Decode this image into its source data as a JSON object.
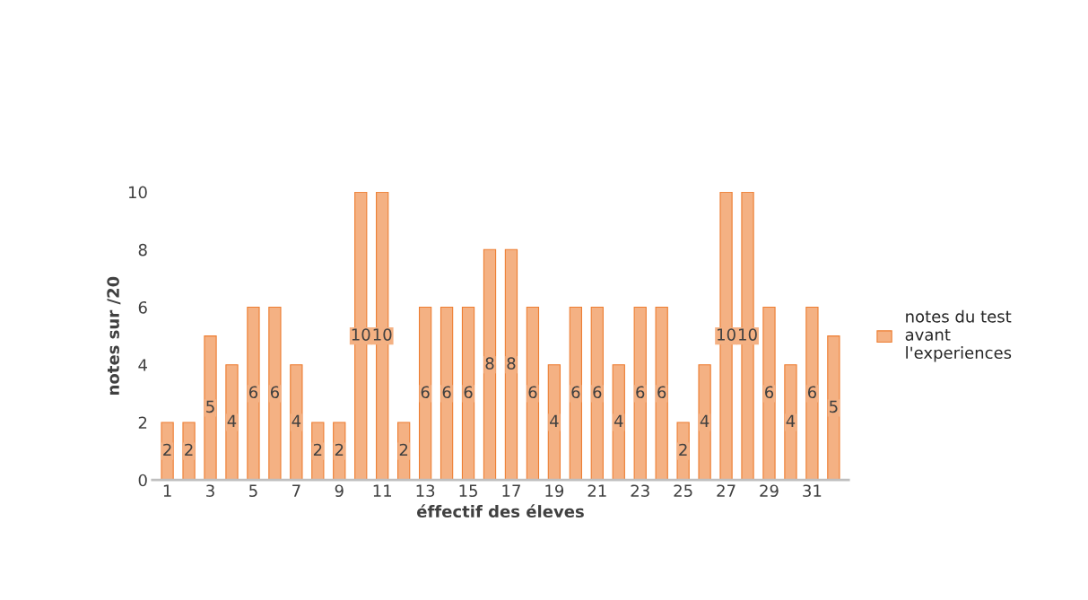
{
  "chart_data": {
    "type": "bar",
    "xlabel": "éffectif des éleves",
    "ylabel": "notes sur /20",
    "categories": [
      "1",
      null,
      "3",
      null,
      "5",
      null,
      "7",
      null,
      "9",
      null,
      "11",
      null,
      "13",
      null,
      "15",
      null,
      "17",
      null,
      "19",
      null,
      "21",
      null,
      "23",
      null,
      "25",
      null,
      "27",
      null,
      "29",
      null,
      "31",
      null
    ],
    "series": [
      {
        "name": "notes du test\navant\nl'experiences",
        "color": "#f4b183",
        "values": [
          2,
          2,
          5,
          4,
          6,
          6,
          4,
          2,
          2,
          10,
          10,
          2,
          6,
          6,
          6,
          8,
          8,
          6,
          4,
          6,
          6,
          4,
          6,
          6,
          2,
          4,
          10,
          10,
          6,
          4,
          6,
          5
        ]
      }
    ],
    "ylim": [
      0,
      10
    ],
    "yticks": [
      0,
      2,
      4,
      6,
      8,
      10
    ],
    "grid": false,
    "legend": "right",
    "data_labels": true
  }
}
